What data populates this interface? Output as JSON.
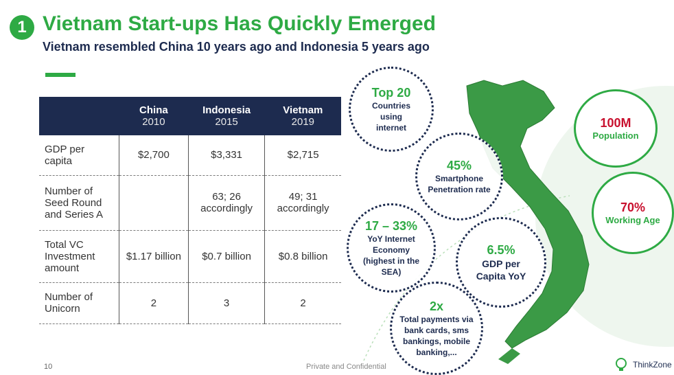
{
  "header": {
    "number": "1",
    "title": "Vietnam Start-ups Has Quickly Emerged",
    "subtitle": "Vietnam resembled China 10 years ago and Indonesia 5 years ago"
  },
  "table": {
    "columns": [
      {
        "name": "China",
        "year": "2010"
      },
      {
        "name": "Indonesia",
        "year": "2015"
      },
      {
        "name": "Vietnam",
        "year": "2019"
      }
    ],
    "rows": [
      {
        "label": "GDP per capita",
        "values": [
          "$2,700",
          "$3,331",
          "$2,715"
        ]
      },
      {
        "label": "Number of Seed Round and Series A",
        "values": [
          "",
          "63; 26 accordingly",
          "49; 31 accordingly"
        ]
      },
      {
        "label": "Total VC Investment amount",
        "values": [
          "$1.17 billion",
          "$0.7 billion",
          "$0.8 billion"
        ]
      },
      {
        "label": "Number of Unicorn",
        "values": [
          "2",
          "3",
          "2"
        ]
      }
    ]
  },
  "stats": {
    "internet": {
      "value": "Top 20",
      "text": "Countries using internet"
    },
    "smartphone": {
      "value": "45%",
      "text": "Smartphone Penetration rate"
    },
    "economy": {
      "value": "17 – 33%",
      "text": "YoY Internet Economy (highest in the SEA)"
    },
    "gdp": {
      "value": "6.5%",
      "text": "GDP per Capita YoY"
    },
    "payments": {
      "value": "2x",
      "text": "Total payments via bank cards, sms bankings, mobile banking,..."
    },
    "population": {
      "value": "100M",
      "text": "Population"
    },
    "working": {
      "value": "70%",
      "text": "Working Age"
    }
  },
  "footer": {
    "page": "10",
    "confidential": "Private and Confidential",
    "brand": "ThinkZone"
  },
  "colors": {
    "accent": "#2eaa44",
    "navy": "#1d2b4f",
    "red": "#c8102e"
  }
}
